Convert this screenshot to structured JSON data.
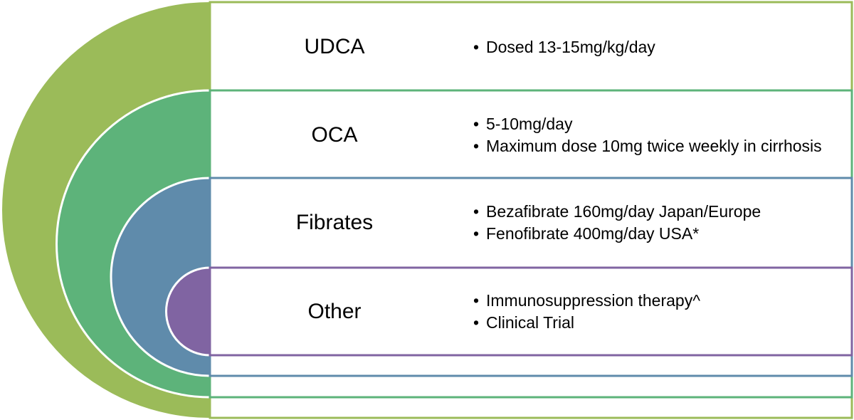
{
  "items": [
    {
      "label": "UDCA",
      "bullets": [
        "Dosed 13-15mg/kg/day"
      ]
    },
    {
      "label": "OCA",
      "bullets": [
        "5-10mg/day",
        "Maximum dose 10mg twice weekly in cirrhosis"
      ]
    },
    {
      "label": "Fibrates",
      "bullets": [
        "Bezafibrate 160mg/day Japan/Europe",
        "Fenofibrate 400mg/day USA*"
      ]
    },
    {
      "label": "Other",
      "bullets": [
        "Immunosuppression therapy^",
        "Clinical Trial"
      ]
    }
  ]
}
